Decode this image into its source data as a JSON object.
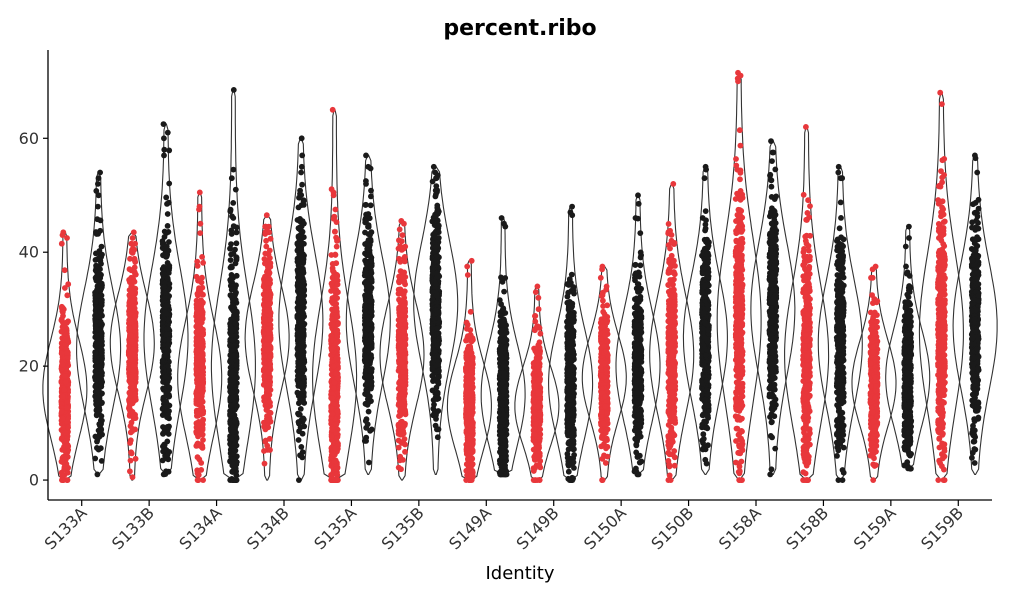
{
  "chart_data": {
    "type": "violin",
    "title": "percent.ribo",
    "xlabel": "Identity",
    "ylabel": "",
    "ylim": [
      -3.5,
      75.5
    ],
    "yticks": [
      0,
      20,
      40,
      60
    ],
    "grid": false,
    "legend": "none",
    "colors": {
      "red": "#E8373B",
      "black": "#1A1A1A",
      "outline": "#333333"
    },
    "categories": [
      "S133A",
      "S133B",
      "S134A",
      "S134B",
      "S135A",
      "S135B",
      "S149A",
      "S149B",
      "S150A",
      "S150B",
      "S158A",
      "S158B",
      "S159A",
      "S159B"
    ],
    "series": [
      {
        "point_color": "#E8373B",
        "median": 16,
        "max": 43.5,
        "min": 0,
        "outliers": [
          43.5,
          43,
          42.5
        ]
      },
      {
        "point_color": "#1A1A1A",
        "median": 23,
        "max": 54,
        "min": 1,
        "outliers": [
          54,
          53,
          52,
          50,
          48
        ]
      },
      {
        "point_color": "#E8373B",
        "median": 24,
        "max": 43.5,
        "min": 0,
        "outliers": [
          43.5,
          42.5,
          40
        ]
      },
      {
        "point_color": "#1A1A1A",
        "median": 25,
        "max": 62.5,
        "min": 1,
        "outliers": [
          62.5,
          61,
          60,
          58,
          57
        ]
      },
      {
        "point_color": "#E8373B",
        "median": 18,
        "max": 50.5,
        "min": 0,
        "outliers": [
          50.5,
          48,
          47.5,
          45
        ]
      },
      {
        "point_color": "#1A1A1A",
        "median": 20,
        "max": 68.5,
        "min": 0,
        "outliers": [
          68.5,
          54.5,
          53,
          51
        ]
      },
      {
        "point_color": "#E8373B",
        "median": 25,
        "max": 46.5,
        "min": 0,
        "outliers": [
          46.5,
          43.5,
          42,
          41
        ]
      },
      {
        "point_color": "#1A1A1A",
        "median": 28,
        "max": 60,
        "min": 0,
        "outliers": [
          60,
          57,
          55,
          54
        ]
      },
      {
        "point_color": "#E8373B",
        "median": 18,
        "max": 65,
        "min": 0,
        "outliers": [
          65,
          50.5,
          50,
          47.5,
          46
        ]
      },
      {
        "point_color": "#1A1A1A",
        "median": 28,
        "max": 57,
        "min": 1,
        "outliers": [
          57,
          52.5,
          52
        ]
      },
      {
        "point_color": "#E8373B",
        "median": 22,
        "max": 45.5,
        "min": 0,
        "outliers": [
          45.5,
          45,
          44,
          43
        ]
      },
      {
        "point_color": "#1A1A1A",
        "median": 31,
        "max": 55,
        "min": 1,
        "outliers": [
          55,
          54,
          53.5
        ]
      },
      {
        "point_color": "#E8373B",
        "median": 13,
        "max": 38.5,
        "min": 0,
        "outliers": [
          38.5,
          37.5,
          36
        ]
      },
      {
        "point_color": "#1A1A1A",
        "median": 15,
        "max": 46,
        "min": 1,
        "outliers": [
          46,
          45,
          44.5
        ]
      },
      {
        "point_color": "#E8373B",
        "median": 13,
        "max": 34,
        "min": 0,
        "outliers": [
          34,
          33,
          30,
          27
        ]
      },
      {
        "point_color": "#1A1A1A",
        "median": 17,
        "max": 48,
        "min": 0,
        "outliers": [
          48,
          47,
          46.5
        ]
      },
      {
        "point_color": "#E8373B",
        "median": 18,
        "max": 37.5,
        "min": 0,
        "outliers": [
          37.5,
          37,
          34
        ]
      },
      {
        "point_color": "#1A1A1A",
        "median": 20,
        "max": 50,
        "min": 1,
        "outliers": [
          50,
          48.5,
          46
        ]
      },
      {
        "point_color": "#E8373B",
        "median": 22,
        "max": 52,
        "min": 0,
        "outliers": [
          52,
          42,
          36.5,
          35
        ]
      },
      {
        "point_color": "#1A1A1A",
        "median": 25,
        "max": 55,
        "min": 1,
        "outliers": [
          55,
          54.5,
          53
        ]
      },
      {
        "point_color": "#E8373B",
        "median": 28,
        "max": 71.5,
        "min": 0,
        "outliers": [
          71.5,
          71,
          70.5,
          70
        ]
      },
      {
        "point_color": "#1A1A1A",
        "median": 30,
        "max": 59.5,
        "min": 1,
        "outliers": [
          59.5,
          57.5,
          56
        ]
      },
      {
        "point_color": "#E8373B",
        "median": 22,
        "max": 62,
        "min": 0,
        "outliers": [
          62,
          42,
          41.5,
          38
        ]
      },
      {
        "point_color": "#1A1A1A",
        "median": 24,
        "max": 55,
        "min": 0,
        "outliers": [
          55,
          54,
          53
        ]
      },
      {
        "point_color": "#E8373B",
        "median": 17,
        "max": 37.5,
        "min": 0,
        "outliers": [
          37.5,
          37,
          35.5
        ]
      },
      {
        "point_color": "#1A1A1A",
        "median": 18,
        "max": 44.5,
        "min": 2,
        "outliers": [
          44.5,
          42.5,
          41
        ]
      },
      {
        "point_color": "#E8373B",
        "median": 26,
        "max": 68,
        "min": 0,
        "outliers": [
          68,
          47,
          43.5,
          43
        ]
      },
      {
        "point_color": "#1A1A1A",
        "median": 27,
        "max": 57,
        "min": 1,
        "outliers": [
          57,
          56.5,
          54
        ]
      }
    ]
  }
}
